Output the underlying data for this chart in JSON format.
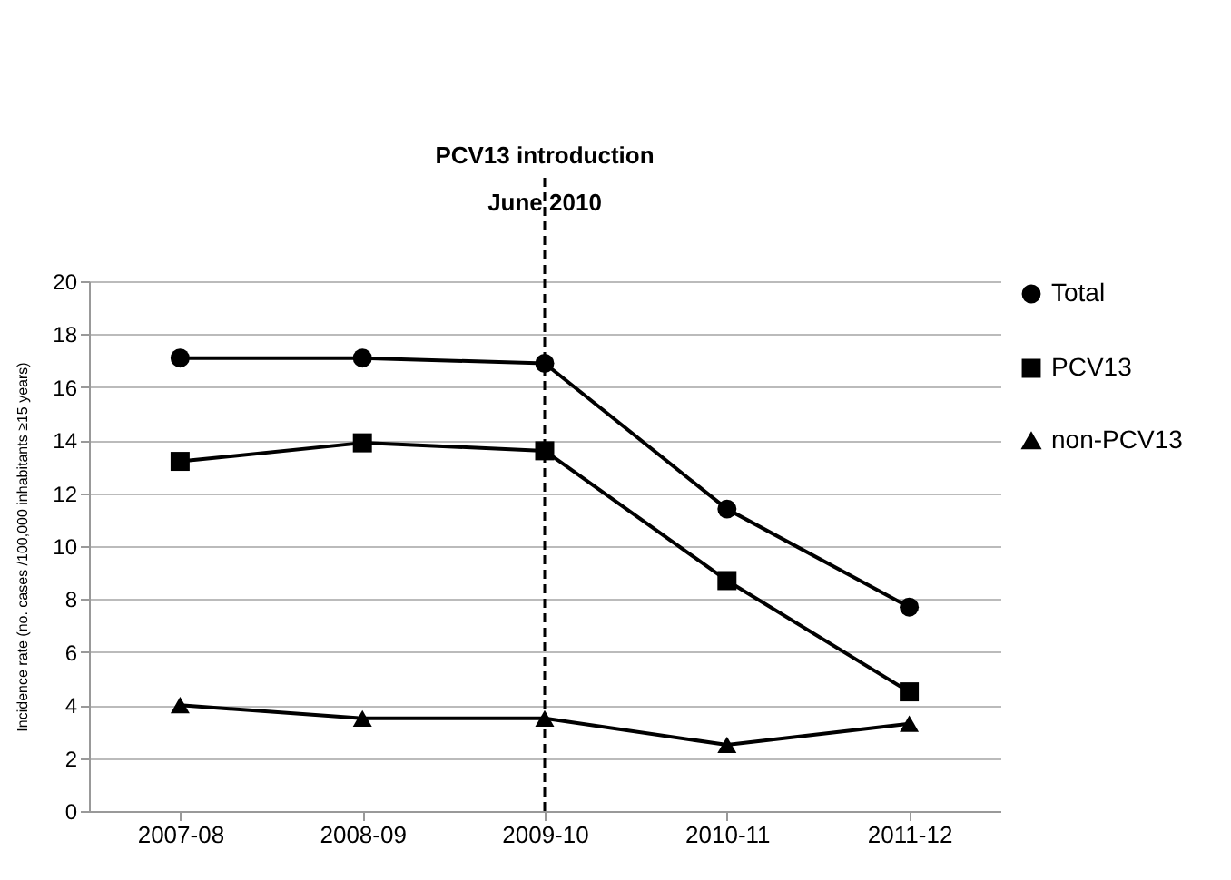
{
  "chart_data": {
    "type": "line",
    "title": "PCV13 introduction",
    "ylabel": "Incidence rate (no. cases /100,000 inhabitants ≥15 years)",
    "categories": [
      "2007-08",
      "2008-09",
      "2009-10",
      "2010-11",
      "2011-12"
    ],
    "series": [
      {
        "name": "Total",
        "color": "#000000",
        "marker": "circle",
        "values": [
          17.1,
          17.1,
          16.9,
          11.4,
          7.7
        ]
      },
      {
        "name": "PCV13",
        "color": "#000000",
        "marker": "square",
        "values": [
          13.2,
          13.9,
          13.6,
          8.7,
          4.5
        ]
      },
      {
        "name": "non-PCV13",
        "color": "#000000",
        "marker": "triangle",
        "values": [
          4.0,
          3.5,
          3.5,
          2.5,
          3.3
        ]
      }
    ],
    "ylim": [
      0,
      20
    ],
    "yticks": [
      0,
      2,
      4,
      6,
      8,
      10,
      12,
      14,
      16,
      18,
      20
    ],
    "grid": "y",
    "legend": "right",
    "line_style": "solid",
    "ref_lines": [
      {
        "axis": "x",
        "value": "2009-10",
        "label": "June 2010",
        "line_style": "dashed",
        "color": "#000000"
      }
    ]
  }
}
